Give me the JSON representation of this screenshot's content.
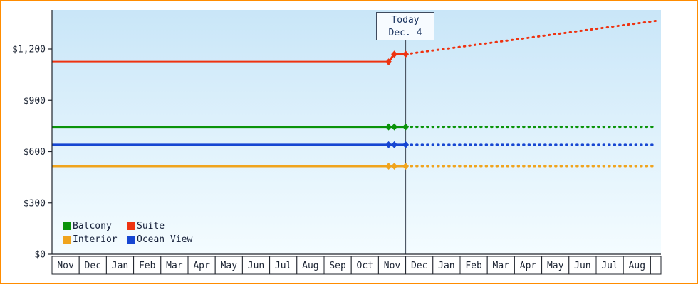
{
  "frame": {
    "border_color": "#ff8c00",
    "plot_background_top": "#c9e6f8",
    "plot_background_bottom": "#f4fcff"
  },
  "chart_data": {
    "type": "line",
    "title": "",
    "xlabel": "",
    "ylabel": "",
    "x_categories": [
      "Nov",
      "Dec",
      "Jan",
      "Feb",
      "Mar",
      "Apr",
      "May",
      "Jun",
      "Jul",
      "Aug",
      "Sep",
      "Oct",
      "Nov",
      "Dec",
      "Jan",
      "Feb",
      "Mar",
      "Apr",
      "May",
      "Jun",
      "Jul",
      "Aug"
    ],
    "yticks": [
      0,
      300,
      600,
      900,
      1200
    ],
    "ytick_labels": [
      "$0",
      "$300",
      "$600",
      "$900",
      "$1,200"
    ],
    "ylim": [
      0,
      1430
    ],
    "grid": false,
    "legend_position": "bottom-left",
    "today_divider": {
      "label_line1": "Today",
      "label_line2": "Dec. 4",
      "at_boundary_index": 13
    },
    "series": [
      {
        "name": "Balcony",
        "color": "#0a930a",
        "history_price": 745,
        "today_price": 745,
        "forecast_price": 745
      },
      {
        "name": "Suite",
        "color": "#ee3311",
        "history_price": 1125,
        "today_price": 1170,
        "forecast_price": 1365
      },
      {
        "name": "Interior",
        "color": "#f0a41d",
        "history_price": 515,
        "today_price": 515,
        "forecast_price": 515
      },
      {
        "name": "Ocean View",
        "color": "#1646d2",
        "history_price": 640,
        "today_price": 640,
        "forecast_price": 640
      }
    ]
  }
}
